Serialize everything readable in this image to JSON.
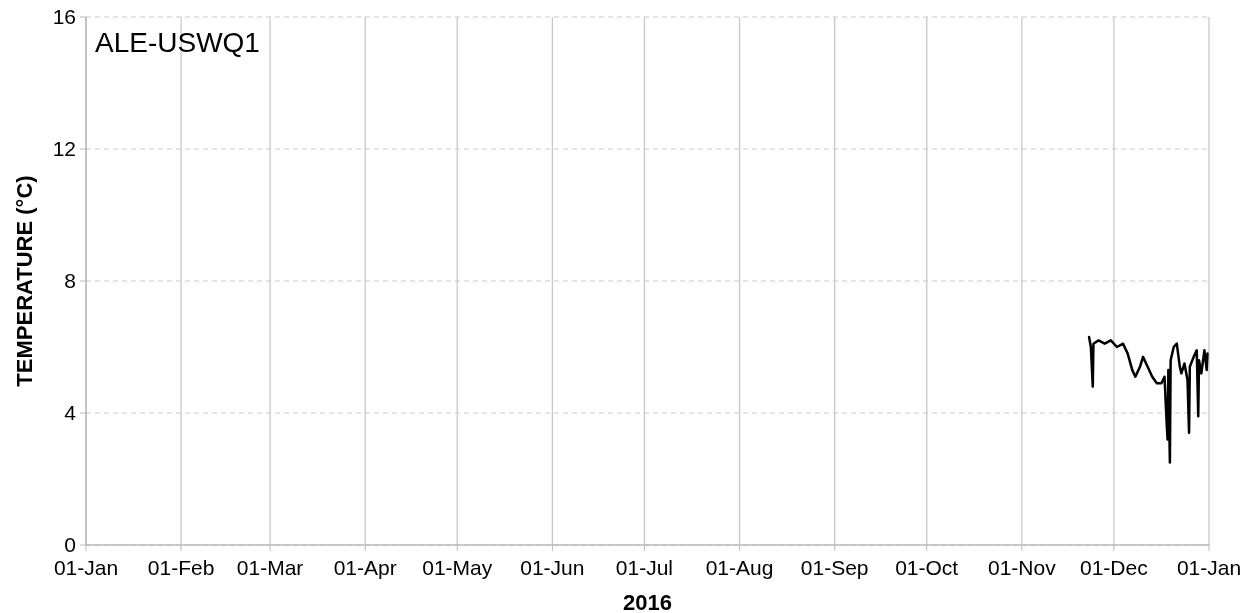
{
  "chart_data": {
    "type": "line",
    "title": "ALE-USWQ1",
    "xlabel": "2016",
    "ylabel": "TEMPERATURE (°C)",
    "grid": true,
    "xlim": [
      "2016-01-01",
      "2017-01-01"
    ],
    "xticks": [
      {
        "value": "2016-01-01",
        "label": "01-Jan"
      },
      {
        "value": "2016-02-01",
        "label": "01-Feb"
      },
      {
        "value": "2016-03-01",
        "label": "01-Mar"
      },
      {
        "value": "2016-04-01",
        "label": "01-Apr"
      },
      {
        "value": "2016-05-01",
        "label": "01-May"
      },
      {
        "value": "2016-06-01",
        "label": "01-Jun"
      },
      {
        "value": "2016-07-01",
        "label": "01-Jul"
      },
      {
        "value": "2016-08-01",
        "label": "01-Aug"
      },
      {
        "value": "2016-09-01",
        "label": "01-Sep"
      },
      {
        "value": "2016-10-01",
        "label": "01-Oct"
      },
      {
        "value": "2016-11-01",
        "label": "01-Nov"
      },
      {
        "value": "2016-12-01",
        "label": "01-Dec"
      },
      {
        "value": "2017-01-01",
        "label": "01-Jan"
      }
    ],
    "ylim": [
      0,
      16
    ],
    "yticks": [
      0,
      4,
      8,
      12,
      16
    ],
    "x": [
      "2016-11-22T22:00",
      "2016-11-23T12:00",
      "2016-11-24T03:00",
      "2016-11-24T08:00",
      "2016-11-26T00:00",
      "2016-11-28T00:00",
      "2016-11-30T00:00",
      "2016-12-02T00:00",
      "2016-12-04T00:00",
      "2016-12-05T12:00",
      "2016-12-07T00:00",
      "2016-12-08T00:00",
      "2016-12-09T12:00",
      "2016-12-10T12:00",
      "2016-12-12T00:00",
      "2016-12-13T12:00",
      "2016-12-15T00:00",
      "2016-12-16T12:00",
      "2016-12-17T12:00",
      "2016-12-18T06:00",
      "2016-12-18T12:00",
      "2016-12-18T18:00",
      "2016-12-19T06:00",
      "2016-12-19T12:00",
      "2016-12-20T12:00",
      "2016-12-21T12:00",
      "2016-12-22T12:00",
      "2016-12-23T00:00",
      "2016-12-24T00:00",
      "2016-12-25T00:00",
      "2016-12-25T12:00",
      "2016-12-25T18:00",
      "2016-12-27T00:00",
      "2016-12-28T00:00",
      "2016-12-28T12:00",
      "2016-12-28T18:00",
      "2016-12-29T12:00",
      "2016-12-30T12:00",
      "2016-12-31T06:00",
      "2016-12-31T12:00"
    ],
    "series": [
      {
        "color": "#000000",
        "values": [
          6.3,
          6.0,
          4.8,
          6.1,
          6.2,
          6.1,
          6.2,
          6.0,
          6.1,
          5.8,
          5.3,
          5.1,
          5.4,
          5.7,
          5.4,
          5.1,
          4.9,
          4.9,
          5.1,
          3.6,
          3.2,
          5.3,
          2.5,
          5.6,
          6.0,
          6.1,
          5.4,
          5.2,
          5.5,
          5.0,
          3.4,
          5.4,
          5.7,
          5.9,
          3.9,
          5.6,
          5.2,
          5.9,
          5.3,
          5.8
        ]
      }
    ]
  }
}
